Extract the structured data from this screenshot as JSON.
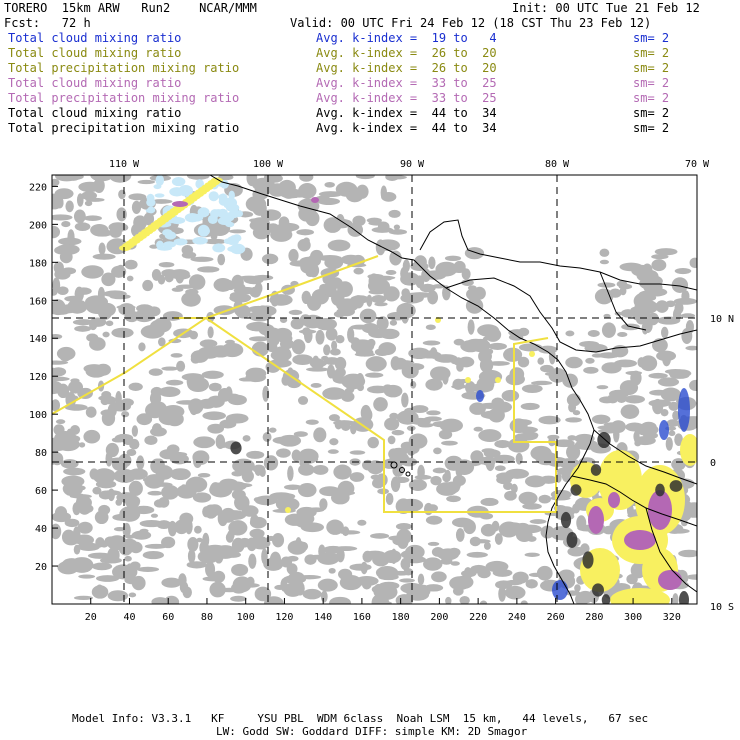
{
  "header": {
    "model": "TORERO  15km ARW   Run2    NCAR/MMM",
    "init": "Init: 00 UTC Tue 21 Feb 12",
    "fcst": "Fcst:   72 h",
    "valid": "Valid: 00 UTC Fri 24 Feb 12 (18 CST Thu 23 Feb 12)"
  },
  "legend": [
    {
      "field": "Total cloud mixing ratio",
      "kindex": "Avg. k-index =  19 to   4",
      "sm": "sm= 2",
      "color": "#1a2fd0"
    },
    {
      "field": "Total cloud mixing ratio",
      "kindex": "Avg. k-index =  26 to  20",
      "sm": "sm= 2",
      "color": "#8a8a12"
    },
    {
      "field": "Total precipitation mixing ratio",
      "kindex": "Avg. k-index =  26 to  20",
      "sm": "sm= 2",
      "color": "#8a8a12"
    },
    {
      "field": "Total cloud mixing ratio",
      "kindex": "Avg. k-index =  33 to  25",
      "sm": "sm= 2",
      "color": "#b46ab4"
    },
    {
      "field": "Total precipitation mixing ratio",
      "kindex": "Avg. k-index =  33 to  25",
      "sm": "sm= 2",
      "color": "#b46ab4"
    },
    {
      "field": "Total cloud mixing ratio",
      "kindex": "Avg. k-index =  44 to  34",
      "sm": "sm= 2",
      "color": "#000000"
    },
    {
      "field": "Total precipitation mixing ratio",
      "kindex": "Avg. k-index =  44 to  34",
      "sm": "sm= 2",
      "color": "#000000"
    }
  ],
  "axes": {
    "x_ticks": [
      "20",
      "40",
      "60",
      "80",
      "100",
      "120",
      "140",
      "160",
      "180",
      "200",
      "220",
      "240",
      "260",
      "280",
      "300",
      "320"
    ],
    "y_ticks": [
      "20",
      "40",
      "60",
      "80",
      "100",
      "120",
      "140",
      "160",
      "180",
      "200",
      "220"
    ],
    "lon_labels": [
      "110 W",
      "100 W",
      "90 W",
      "80 W",
      "70 W"
    ],
    "lat_labels": [
      "10 N",
      "0",
      "10 S"
    ],
    "x_range": [
      0,
      333
    ],
    "y_range": [
      0,
      226
    ]
  },
  "footer": {
    "line1": "Model Info: V3.3.1   KF     YSU PBL  WDM 6class  Noah LSM  15 km,   44 levels,   67 sec",
    "line2": "LW: Godd SW: Goddard DIFF: simple KM: 2D Smagor"
  },
  "colors": {
    "cloud_gray": "#b4b4b4",
    "light_blue": "#c8e8f8",
    "blue": "#2a4cd0",
    "yellow": "#f8f060",
    "magenta": "#b468b4",
    "dark": "#303030",
    "domain_line": "#f0e040"
  }
}
